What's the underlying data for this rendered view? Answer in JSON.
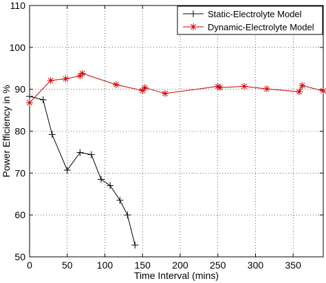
{
  "chart_data": {
    "type": "line",
    "title": "",
    "xlabel": "Time Interval (mins)",
    "ylabel": "Power Efficiency in %",
    "xlim": [
      0,
      390
    ],
    "ylim": [
      50,
      110
    ],
    "xticks": [
      0,
      50,
      100,
      150,
      200,
      250,
      300,
      350
    ],
    "yticks": [
      50,
      60,
      70,
      80,
      90,
      100,
      110
    ],
    "grid": true,
    "legend_position": "top-right",
    "series": [
      {
        "name": "Static-Electrolyte Model",
        "color": "#000000",
        "marker": "plus",
        "x": [
          0,
          18,
          30,
          50,
          67,
          82,
          95,
          107,
          120,
          130,
          140
        ],
        "y": [
          88.3,
          87.5,
          79.2,
          70.7,
          74.9,
          74.4,
          68.5,
          67.0,
          63.5,
          60.0,
          52.8
        ]
      },
      {
        "name": "Dynamic-Electrolyte Model",
        "color": "#cc0000",
        "marker": "star",
        "x": [
          0,
          28,
          48,
          67,
          70,
          115,
          150,
          153,
          180,
          250,
          253,
          285,
          315,
          358,
          362,
          390
        ],
        "y": [
          86.8,
          92.1,
          92.5,
          93.2,
          93.8,
          91.1,
          89.7,
          90.4,
          89.0,
          90.7,
          90.4,
          90.7,
          90.1,
          89.4,
          90.9,
          89.6
        ]
      }
    ]
  }
}
